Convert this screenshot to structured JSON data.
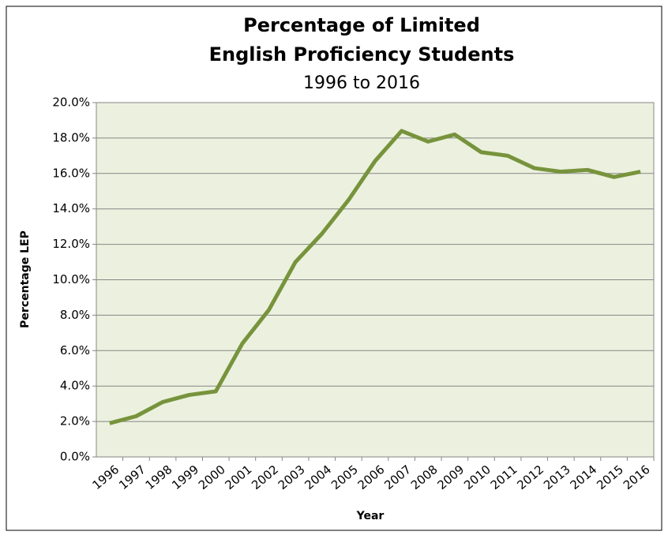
{
  "chart_data": {
    "type": "line",
    "title": [
      "Percentage of Limited",
      "English Proficiency Students"
    ],
    "subtitle": "1996 to 2016",
    "y_label": "Percentage LEP",
    "x_label": "Year",
    "categories": [
      "1996",
      "1997",
      "1998",
      "1999",
      "2000",
      "2001",
      "2002",
      "2003",
      "2004",
      "2005",
      "2006",
      "2007",
      "2008",
      "2009",
      "2010",
      "2011",
      "2012",
      "2013",
      "2014",
      "2015",
      "2016"
    ],
    "values": [
      1.9,
      2.3,
      3.1,
      3.5,
      3.7,
      6.4,
      8.3,
      11.0,
      12.6,
      14.5,
      16.7,
      18.4,
      17.8,
      18.2,
      17.2,
      17.0,
      16.3,
      16.1,
      16.2,
      15.8,
      16.1
    ],
    "color": "#77933c",
    "plot_background": "#ebf1de",
    "ylim": [
      0,
      20
    ],
    "yticks": [
      {
        "value": 0,
        "label": "0.0%"
      },
      {
        "value": 2,
        "label": "2.0%"
      },
      {
        "value": 4,
        "label": "4.0%"
      },
      {
        "value": 6,
        "label": "6.0%"
      },
      {
        "value": 8,
        "label": "8.0%"
      },
      {
        "value": 10,
        "label": "10.0%"
      },
      {
        "value": 12,
        "label": "12.0%"
      },
      {
        "value": 14,
        "label": "14.0%"
      },
      {
        "value": 16,
        "label": "16.0%"
      },
      {
        "value": 18,
        "label": "18.0%"
      },
      {
        "value": 20,
        "label": "20.0%"
      }
    ],
    "grid": true
  }
}
